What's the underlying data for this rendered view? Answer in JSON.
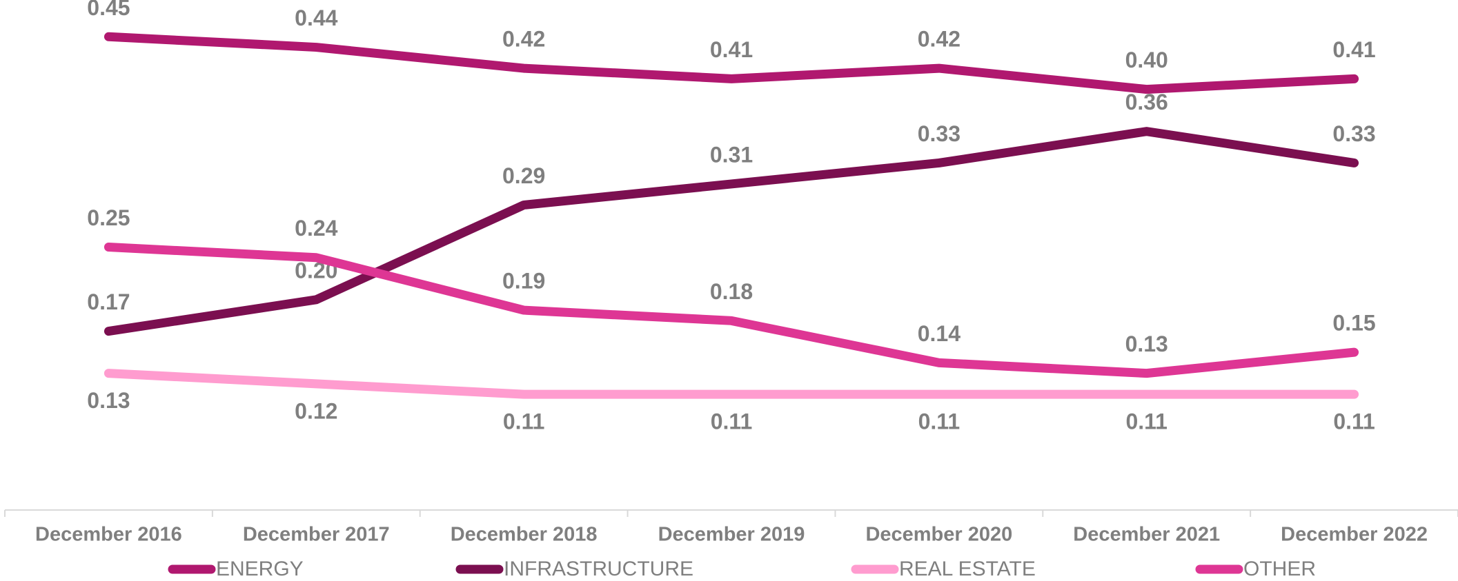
{
  "chart_data": {
    "type": "line",
    "categories": [
      "December 2016",
      "December 2017",
      "December 2018",
      "December 2019",
      "December 2020",
      "December 2021",
      "December 2022"
    ],
    "ylim": [
      0,
      0.5
    ],
    "series": [
      {
        "name": "ENERGY",
        "color": "#b0186f",
        "values": [
          0.45,
          0.44,
          0.42,
          0.41,
          0.42,
          0.4,
          0.41
        ],
        "value_labels": [
          "0.45",
          "0.44",
          "0.42",
          "0.41",
          "0.42",
          "0.40",
          "0.41"
        ]
      },
      {
        "name": "INFRASTRUCTURE",
        "color": "#7b0f50",
        "values": [
          0.17,
          0.2,
          0.29,
          0.31,
          0.33,
          0.36,
          0.33
        ],
        "value_labels": [
          "0.17",
          "0.20",
          "0.29",
          "0.31",
          "0.33",
          "0.36",
          "0.33"
        ]
      },
      {
        "name": "REAL ESTATE",
        "color": "#ff9ccf",
        "values": [
          0.13,
          0.12,
          0.11,
          0.11,
          0.11,
          0.11,
          0.11
        ],
        "value_labels": [
          "0.13",
          "0.12",
          "0.11",
          "0.11",
          "0.11",
          "0.11",
          "0.11"
        ]
      },
      {
        "name": "OTHER",
        "color": "#de3694",
        "values": [
          0.25,
          0.24,
          0.19,
          0.18,
          0.14,
          0.13,
          0.15
        ],
        "value_labels": [
          "0.25",
          "0.24",
          "0.19",
          "0.18",
          "0.14",
          "0.13",
          "0.15"
        ]
      }
    ]
  }
}
